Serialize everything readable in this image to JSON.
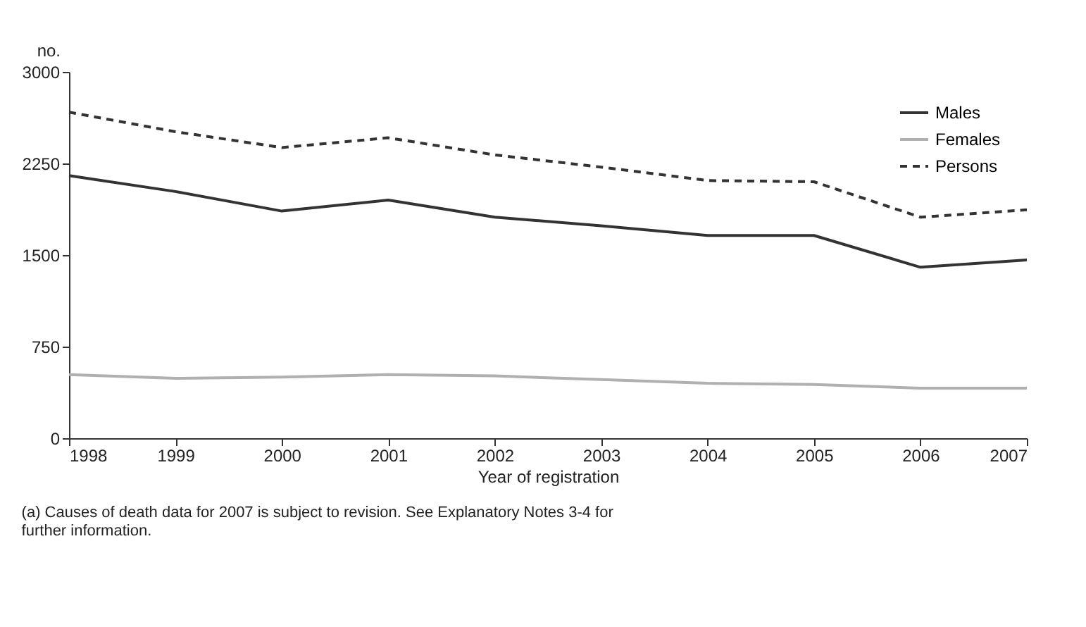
{
  "chart_data": {
    "type": "line",
    "ylabel": "no.",
    "xlabel": "Year of registration",
    "x": [
      1998,
      1999,
      2000,
      2001,
      2002,
      2003,
      2004,
      2005,
      2006,
      2007
    ],
    "xlim": [
      1998,
      2007
    ],
    "xticks": [
      1998,
      1999,
      2000,
      2001,
      2002,
      2003,
      2004,
      2005,
      2006,
      2007
    ],
    "ylim": [
      0,
      3000
    ],
    "yticks": [
      0,
      750,
      1500,
      2250,
      3000
    ],
    "grid": false,
    "legend": "top right",
    "marker": "none",
    "series": [
      {
        "name": "Males",
        "color": "#333333",
        "line_style": "solid",
        "values": [
          2150,
          2020,
          1860,
          1950,
          1810,
          1740,
          1660,
          1660,
          1400,
          1460
        ]
      },
      {
        "name": "Females",
        "color": "#b0b0b0",
        "line_style": "solid",
        "values": [
          520,
          490,
          500,
          520,
          510,
          480,
          450,
          440,
          410,
          410
        ]
      },
      {
        "name": "Persons",
        "color": "#333333",
        "line_style": "dashed",
        "values": [
          2670,
          2510,
          2380,
          2460,
          2320,
          2220,
          2110,
          2100,
          1810,
          1870
        ]
      }
    ],
    "annotations": [
      "(a) Causes of death data for 2007 is subject to revision. See Explanatory Notes 3-4 for further information."
    ]
  }
}
